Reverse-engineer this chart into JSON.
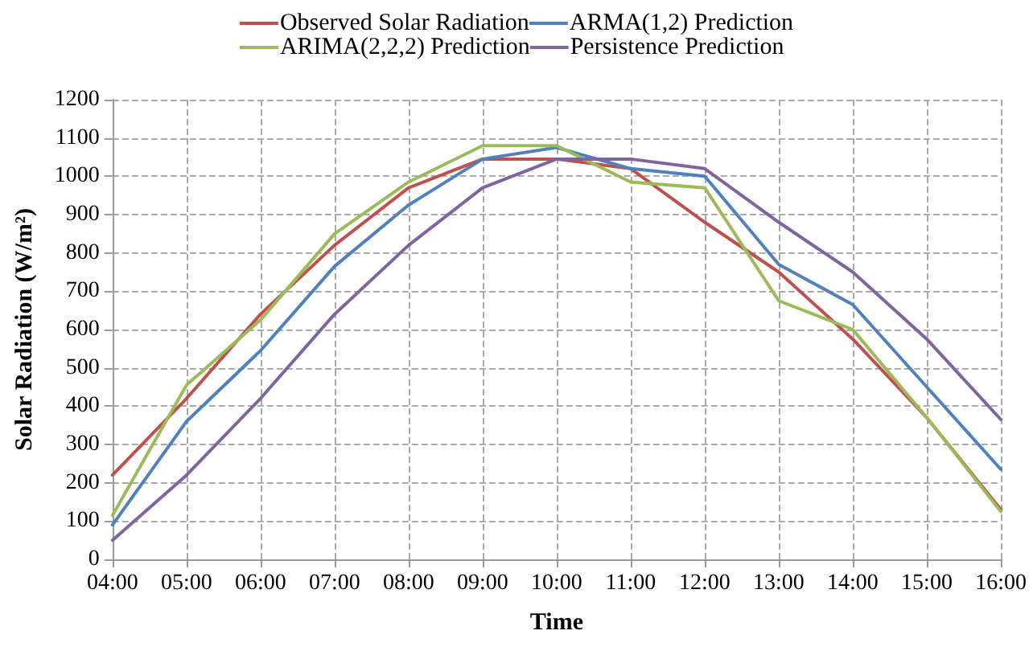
{
  "chart_data": {
    "type": "line",
    "xlabel": "Time",
    "ylabel": "Solar Radiation (W/m²)",
    "categories": [
      "04:00",
      "05:00",
      "06:00",
      "07:00",
      "08:00",
      "09:00",
      "10:00",
      "11:00",
      "12:00",
      "13:00",
      "14:00",
      "15:00",
      "16:00"
    ],
    "series": [
      {
        "name": "Observed Solar Radiation",
        "color": "#c0504d",
        "values": [
          220,
          420,
          640,
          820,
          970,
          1045,
          1045,
          1020,
          880,
          750,
          575,
          370,
          130
        ]
      },
      {
        "name": "ARMA(1,2) Prediction",
        "color": "#4f81bd",
        "values": [
          90,
          360,
          545,
          765,
          925,
          1045,
          1075,
          1020,
          1000,
          770,
          665,
          450,
          235
        ]
      },
      {
        "name": "ARIMA(2,2,2) Prediction",
        "color": "#9bbb59",
        "values": [
          115,
          455,
          625,
          850,
          985,
          1080,
          1080,
          985,
          970,
          675,
          600,
          370,
          125
        ]
      },
      {
        "name": "Persistence Prediction",
        "color": "#8064a2",
        "values": [
          50,
          220,
          420,
          640,
          820,
          970,
          1045,
          1045,
          1020,
          880,
          750,
          575,
          365
        ]
      }
    ],
    "ylim": [
      0,
      1200
    ],
    "yticks": [
      0,
      100,
      200,
      300,
      400,
      500,
      600,
      700,
      800,
      900,
      1000,
      1100,
      1200
    ],
    "grid": true,
    "legend": "top",
    "marker": "none",
    "line_style": "solid"
  }
}
